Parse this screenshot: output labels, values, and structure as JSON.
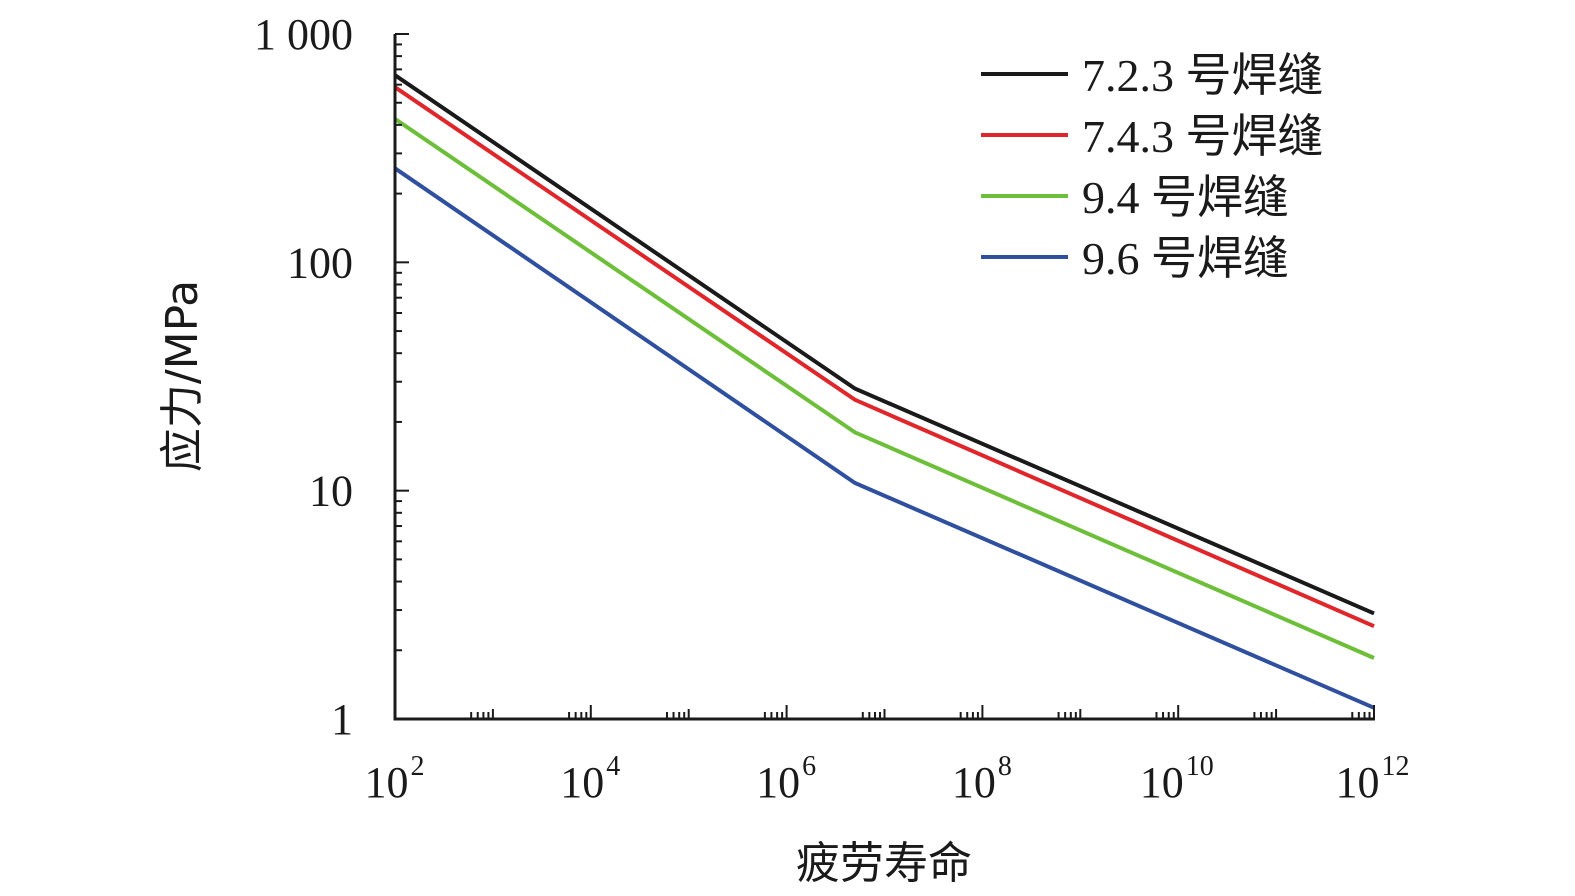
{
  "chart_data": {
    "type": "line",
    "xlabel": "疲劳寿命",
    "ylabel": "应力/MPa",
    "x_scale": "log",
    "y_scale": "log",
    "xlim": [
      100,
      1000000000000
    ],
    "ylim": [
      1,
      1000
    ],
    "x_ticks": [
      {
        "value": 100,
        "base": "10",
        "exp": "2"
      },
      {
        "value": 10000,
        "base": "10",
        "exp": "4"
      },
      {
        "value": 1000000,
        "base": "10",
        "exp": "6"
      },
      {
        "value": 100000000,
        "base": "10",
        "exp": "8"
      },
      {
        "value": 10000000000,
        "base": "10",
        "exp": "10"
      },
      {
        "value": 1000000000000,
        "base": "10",
        "exp": "12"
      }
    ],
    "y_ticks": [
      {
        "value": 1,
        "label": "1"
      },
      {
        "value": 10,
        "label": "10"
      },
      {
        "value": 100,
        "label": "100"
      },
      {
        "value": 1000,
        "label": "1 000"
      }
    ],
    "grid": false,
    "legend_position": "top-right",
    "series": [
      {
        "name": "7.2.3 号焊缝",
        "color": "#1a1a1a",
        "x": [
          100,
          5000000,
          1000000000000
        ],
        "y": [
          660,
          28,
          2.9
        ]
      },
      {
        "name": "7.4.3 号焊缝",
        "color": "#e0262b",
        "x": [
          100,
          5000000,
          1000000000000
        ],
        "y": [
          585,
          25,
          2.55
        ]
      },
      {
        "name": "9.4 号焊缝",
        "color": "#6dbf3a",
        "x": [
          100,
          5000000,
          1000000000000
        ],
        "y": [
          425,
          18,
          1.85
        ]
      },
      {
        "name": "9.6 号焊缝",
        "color": "#2f4f9f",
        "x": [
          100,
          5000000,
          1000000000000
        ],
        "y": [
          258,
          10.8,
          1.12
        ]
      }
    ]
  }
}
